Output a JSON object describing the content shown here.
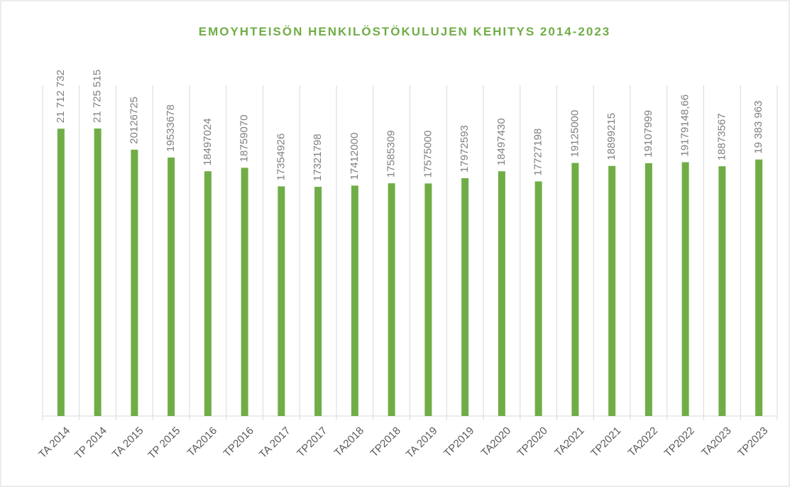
{
  "chart_data": {
    "type": "bar",
    "title": "EMOYHTEISÖN HENKILÖSTÖKULUJEN KEHITYS 2014-2023",
    "categories": [
      "TA 2014",
      "TP 2014",
      "TA 2015",
      "TP 2015",
      "TA2016",
      "TP2016",
      "TA 2017",
      "TP2017",
      "TA2018",
      "TP2018",
      "TA 2019",
      "TP2019",
      "TA2020",
      "TP2020",
      "TA2021",
      "TP2021",
      "TA2022",
      "TP2022",
      "TA2023",
      "TP2023"
    ],
    "values": [
      21712732,
      21725515,
      20126725,
      19533678,
      18497024,
      18759070,
      17354926,
      17321798,
      17412000,
      17585309,
      17575000,
      17972593,
      18497430,
      17727198,
      19125000,
      18899215,
      19107999,
      19179148.66,
      18873567,
      19383963
    ],
    "value_labels": [
      "21 712 732",
      "21 725 515",
      "20126725",
      "19533678",
      "18497024",
      "18759070",
      "17354926",
      "17321798",
      "17412000",
      "17585309",
      "17575000",
      "17972593",
      "18497430",
      "17727198",
      "19125000",
      "18899215",
      "19107999",
      "19179148,66",
      "18873567",
      "19 383 963"
    ],
    "color": "#70ad47",
    "ylim": [
      0,
      25000000
    ]
  }
}
